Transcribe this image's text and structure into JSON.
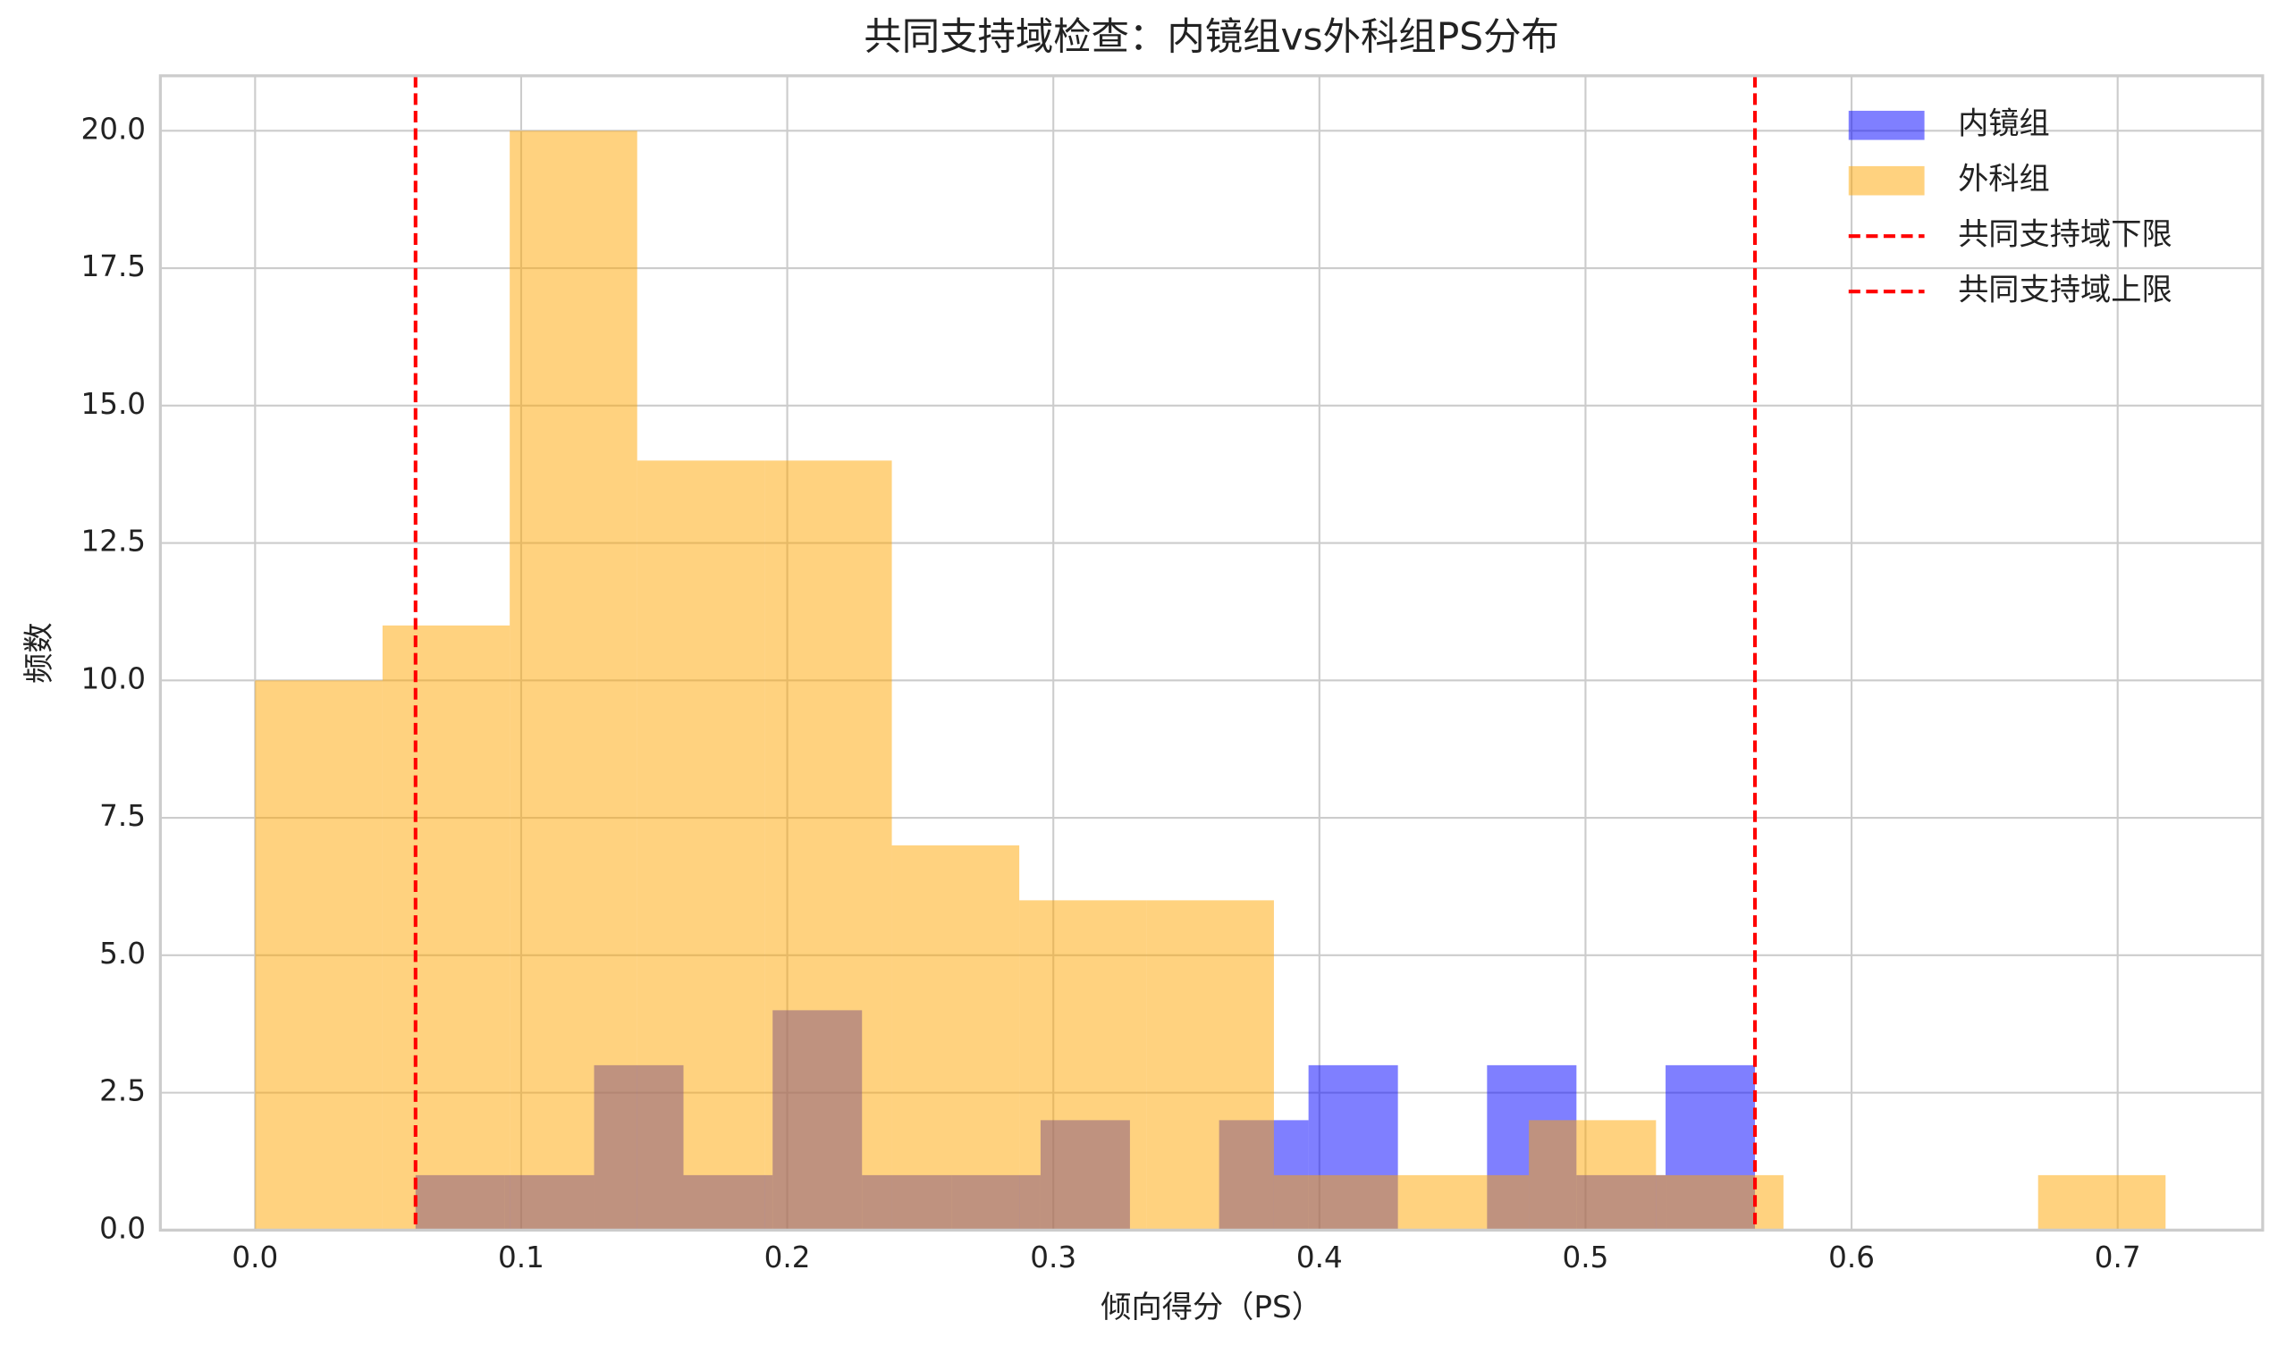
{
  "chart_data": {
    "type": "histogram",
    "title": "共同支持域检查：内镜组vs外科组PS分布",
    "x_label": "倾向得分（PS）",
    "y_label": "频数",
    "series": [
      {
        "name": "内镜组",
        "color": "#0000ff",
        "alpha": 0.5,
        "bins": [
          0.0603,
          0.0939,
          0.1274,
          0.161,
          0.1945,
          0.2281,
          0.2617,
          0.2952,
          0.3288,
          0.3623,
          0.3959,
          0.4295,
          0.463,
          0.4966,
          0.5301,
          0.5637
        ],
        "values": [
          1,
          1,
          3,
          1,
          4,
          1,
          1,
          2,
          0,
          2,
          3,
          0,
          3,
          1,
          3
        ]
      },
      {
        "name": "外科组",
        "color": "#ffa500",
        "alpha": 0.5,
        "bins": [
          0,
          0.0479,
          0.0957,
          0.1436,
          0.1915,
          0.2393,
          0.2872,
          0.3351,
          0.3829,
          0.4308,
          0.4787,
          0.5265,
          0.5744,
          0.6223,
          0.6701,
          0.718
        ],
        "values": [
          10,
          11,
          20,
          14,
          14,
          7,
          6,
          6,
          1,
          1,
          2,
          1,
          0,
          0,
          1
        ]
      }
    ],
    "vlines": [
      {
        "name": "共同支持域下限",
        "value": 0.0603,
        "color": "#ff0000"
      },
      {
        "name": "共同支持域上限",
        "value": 0.5637,
        "color": "#ff0000"
      }
    ],
    "xlim": [
      -0.0356,
      0.7545
    ],
    "ylim": [
      0,
      21
    ],
    "xticks": [
      {
        "value": 0,
        "label": "0.0"
      },
      0.1,
      0.2,
      0.3,
      0.4,
      0.5,
      0.6,
      0.7
    ],
    "yticks": [
      {
        "value": 0,
        "label": "0.0"
      },
      2.5,
      {
        "value": 5,
        "label": "5.0"
      },
      7.5,
      {
        "value": 10,
        "label": "10.0"
      },
      12.5,
      {
        "value": 15,
        "label": "15.0"
      },
      17.5,
      {
        "value": 20,
        "label": "20.0"
      }
    ],
    "grid": true,
    "legend": "upper right"
  }
}
